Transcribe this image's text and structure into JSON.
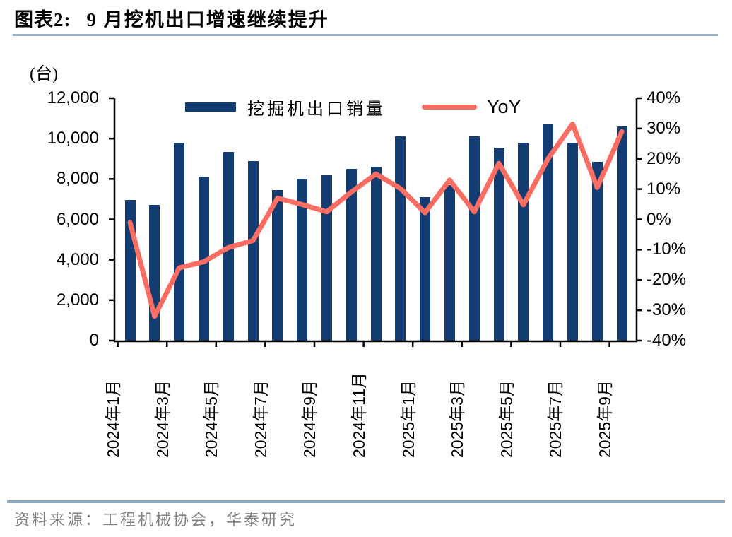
{
  "header": {
    "tag": "图表2:",
    "title": "9 月挖机出口增速继续提升"
  },
  "chart_data": {
    "type": "bar",
    "subtype": "bar+line combo, dual y-axes",
    "unit_label": "(台)",
    "categories": [
      "2024年1月",
      "2024年2月",
      "2024年3月",
      "2024年4月",
      "2024年5月",
      "2024年6月",
      "2024年7月",
      "2024年8月",
      "2024年9月",
      "2024年10月",
      "2024年11月",
      "2024年12月",
      "2025年1月",
      "2025年2月",
      "2025年3月",
      "2025年4月",
      "2025年5月",
      "2025年6月",
      "2025年7月",
      "2025年8月",
      "2025年9月"
    ],
    "x_tick_labels": [
      "2024年1月",
      "2024年3月",
      "2024年5月",
      "2024年7月",
      "2024年9月",
      "2024年11月",
      "2025年1月",
      "2025年3月",
      "2025年5月",
      "2025年7月",
      "2025年9月"
    ],
    "series": [
      {
        "name": "挖掘机出口销量",
        "type": "bar",
        "axis": "left",
        "color": "#133d72",
        "values": [
          6950,
          6700,
          9800,
          8100,
          9350,
          8900,
          7450,
          8000,
          8200,
          8500,
          8600,
          10100,
          7100,
          7700,
          10100,
          9550,
          9800,
          10700,
          9800,
          8850,
          10600
        ]
      },
      {
        "name": "YoY",
        "type": "line",
        "axis": "right",
        "color": "#fa6d63",
        "values_pct": [
          -1,
          -32,
          -16,
          -14,
          -9.3,
          -7,
          7,
          4.9,
          2.5,
          9,
          15,
          10.2,
          2.2,
          13,
          2.5,
          18.5,
          4.8,
          20,
          31.5,
          10.5,
          29
        ]
      }
    ],
    "left_axis": {
      "min": 0,
      "max": 12000,
      "tick_labels": [
        "12,000",
        "10,000",
        "8,000",
        "6,000",
        "4,000",
        "2,000",
        "0"
      ]
    },
    "right_axis": {
      "min": -40,
      "max": 40,
      "tick_labels": [
        "40%",
        "30%",
        "20%",
        "10%",
        "0%",
        "-10%",
        "-20%",
        "-30%",
        "-40%"
      ]
    },
    "grid": "off",
    "legend_position": "top-inside",
    "colors": {
      "bar": "#133d72",
      "line": "#fa6d63",
      "axis": "#000000",
      "title_rule": "#9db3cc",
      "source_rule": "#8ca6c0",
      "source_text": "#808080"
    }
  },
  "footer": {
    "source": "资料来源：工程机械协会，华泰研究"
  }
}
